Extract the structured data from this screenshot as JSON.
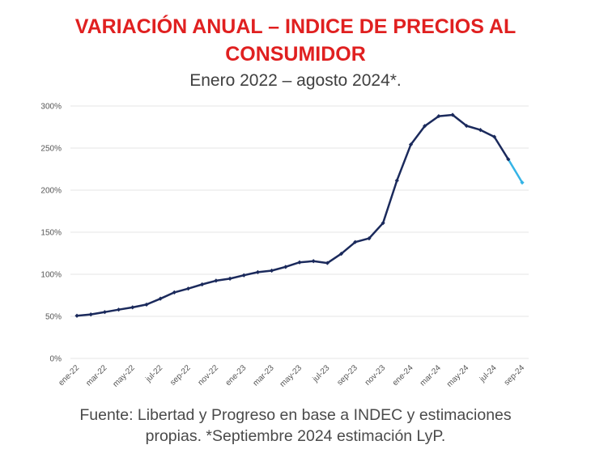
{
  "title_line1": "VARIACIÓN ANUAL – INDICE DE PRECIOS AL",
  "title_line2": "CONSUMIDOR",
  "subtitle": "Enero 2022 – agosto 2024*.",
  "source_line1": "Fuente: Libertad y Progreso en base a INDEC y estimaciones",
  "source_line2": "propias. *Septiembre 2024 estimación LyP.",
  "colors": {
    "title": "#e02020",
    "line": "#1b2a5c",
    "estimate": "#35b4e6",
    "grid": "#e6e6e6"
  },
  "chart_data": {
    "type": "line",
    "title": "VARIACIÓN ANUAL – INDICE DE PRECIOS AL CONSUMIDOR",
    "subtitle": "Enero 2022 – agosto 2024*.",
    "xlabel": "",
    "ylabel": "",
    "ylim": [
      0,
      300
    ],
    "yticks": [
      "0%",
      "50%",
      "100%",
      "150%",
      "200%",
      "250%",
      "300%"
    ],
    "ytick_values": [
      0,
      50,
      100,
      150,
      200,
      250,
      300
    ],
    "xtick_labels": [
      "ene-22",
      "mar-22",
      "may-22",
      "jul-22",
      "sep-22",
      "nov-22",
      "ene-23",
      "mar-23",
      "may-23",
      "jul-23",
      "sep-23",
      "nov-23",
      "ene-24",
      "mar-24",
      "may-24",
      "jul-24",
      "sep-24"
    ],
    "grid": true,
    "x": [
      "ene-22",
      "feb-22",
      "mar-22",
      "abr-22",
      "may-22",
      "jun-22",
      "jul-22",
      "ago-22",
      "sep-22",
      "oct-22",
      "nov-22",
      "dic-22",
      "ene-23",
      "feb-23",
      "mar-23",
      "abr-23",
      "may-23",
      "jun-23",
      "jul-23",
      "ago-23",
      "sep-23",
      "oct-23",
      "nov-23",
      "dic-23",
      "ene-24",
      "feb-24",
      "mar-24",
      "abr-24",
      "may-24",
      "jun-24",
      "jul-24",
      "ago-24",
      "sep-24"
    ],
    "values": [
      50.7,
      52.3,
      55.1,
      58.0,
      60.7,
      64.0,
      71.0,
      78.5,
      83.0,
      88.0,
      92.4,
      94.8,
      98.8,
      102.5,
      104.3,
      108.8,
      114.2,
      115.6,
      113.4,
      124.4,
      138.3,
      142.7,
      160.9,
      211.4,
      254.2,
      276.2,
      287.9,
      289.4,
      276.4,
      271.5,
      263.4,
      236.7,
      209.0
    ],
    "estimate_from_index": 31
  }
}
